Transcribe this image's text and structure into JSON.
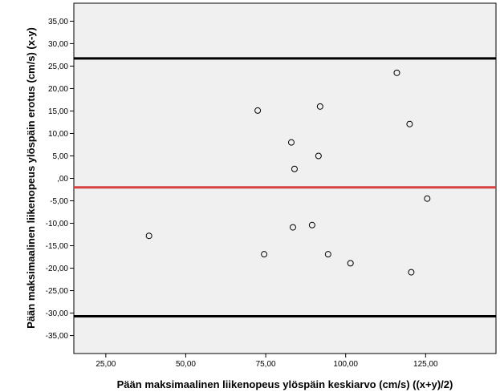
{
  "chart_data": {
    "type": "scatter",
    "title": "",
    "xlabel": "Pään maksimaalinen liikenopeus ylöspäin keskiarvo (cm/s) ((x+y)/2)",
    "ylabel": "Pään maksimaalinen liikenopeus ylöspäin erotus (cm/s) (x-y)",
    "xlim": [
      15,
      147
    ],
    "ylim": [
      -39,
      39
    ],
    "x_ticks": [
      {
        "value": 25,
        "label": "25,00"
      },
      {
        "value": 50,
        "label": "50,00"
      },
      {
        "value": 75,
        "label": "75,00"
      },
      {
        "value": 100,
        "label": "100,00"
      },
      {
        "value": 125,
        "label": "125,00"
      }
    ],
    "y_ticks": [
      {
        "value": 35,
        "label": "35,00"
      },
      {
        "value": 30,
        "label": "30,00"
      },
      {
        "value": 25,
        "label": "25,00"
      },
      {
        "value": 20,
        "label": "20,00"
      },
      {
        "value": 15,
        "label": "15,00"
      },
      {
        "value": 10,
        "label": "10,00"
      },
      {
        "value": 5,
        "label": "5,00"
      },
      {
        "value": 0,
        "label": ",00"
      },
      {
        "value": -5,
        "label": "-5,00"
      },
      {
        "value": -10,
        "label": "-10,00"
      },
      {
        "value": -15,
        "label": "-15,00"
      },
      {
        "value": -20,
        "label": "-20,00"
      },
      {
        "value": -25,
        "label": "-25,00"
      },
      {
        "value": -30,
        "label": "-30,00"
      },
      {
        "value": -35,
        "label": "-35,00"
      }
    ],
    "points": [
      {
        "x": 38.5,
        "y": -12.8
      },
      {
        "x": 72.5,
        "y": 15.1
      },
      {
        "x": 74.5,
        "y": -16.9
      },
      {
        "x": 83.0,
        "y": 8.0
      },
      {
        "x": 83.5,
        "y": -10.9
      },
      {
        "x": 84.0,
        "y": 2.1
      },
      {
        "x": 89.5,
        "y": -10.4
      },
      {
        "x": 91.5,
        "y": 5.0
      },
      {
        "x": 92.0,
        "y": 16.0
      },
      {
        "x": 94.5,
        "y": -16.9
      },
      {
        "x": 101.5,
        "y": -18.9
      },
      {
        "x": 116.0,
        "y": 23.5
      },
      {
        "x": 120.0,
        "y": 12.1
      },
      {
        "x": 120.5,
        "y": -20.9
      },
      {
        "x": 125.5,
        "y": -4.5
      }
    ],
    "reference_lines": [
      {
        "y": 26.7,
        "color": "#000000"
      },
      {
        "y": -2.0,
        "color": "#d64040"
      },
      {
        "y": -30.7,
        "color": "#000000"
      }
    ],
    "plot_background": "#f0f0f0",
    "grid": false,
    "legend": "none"
  }
}
